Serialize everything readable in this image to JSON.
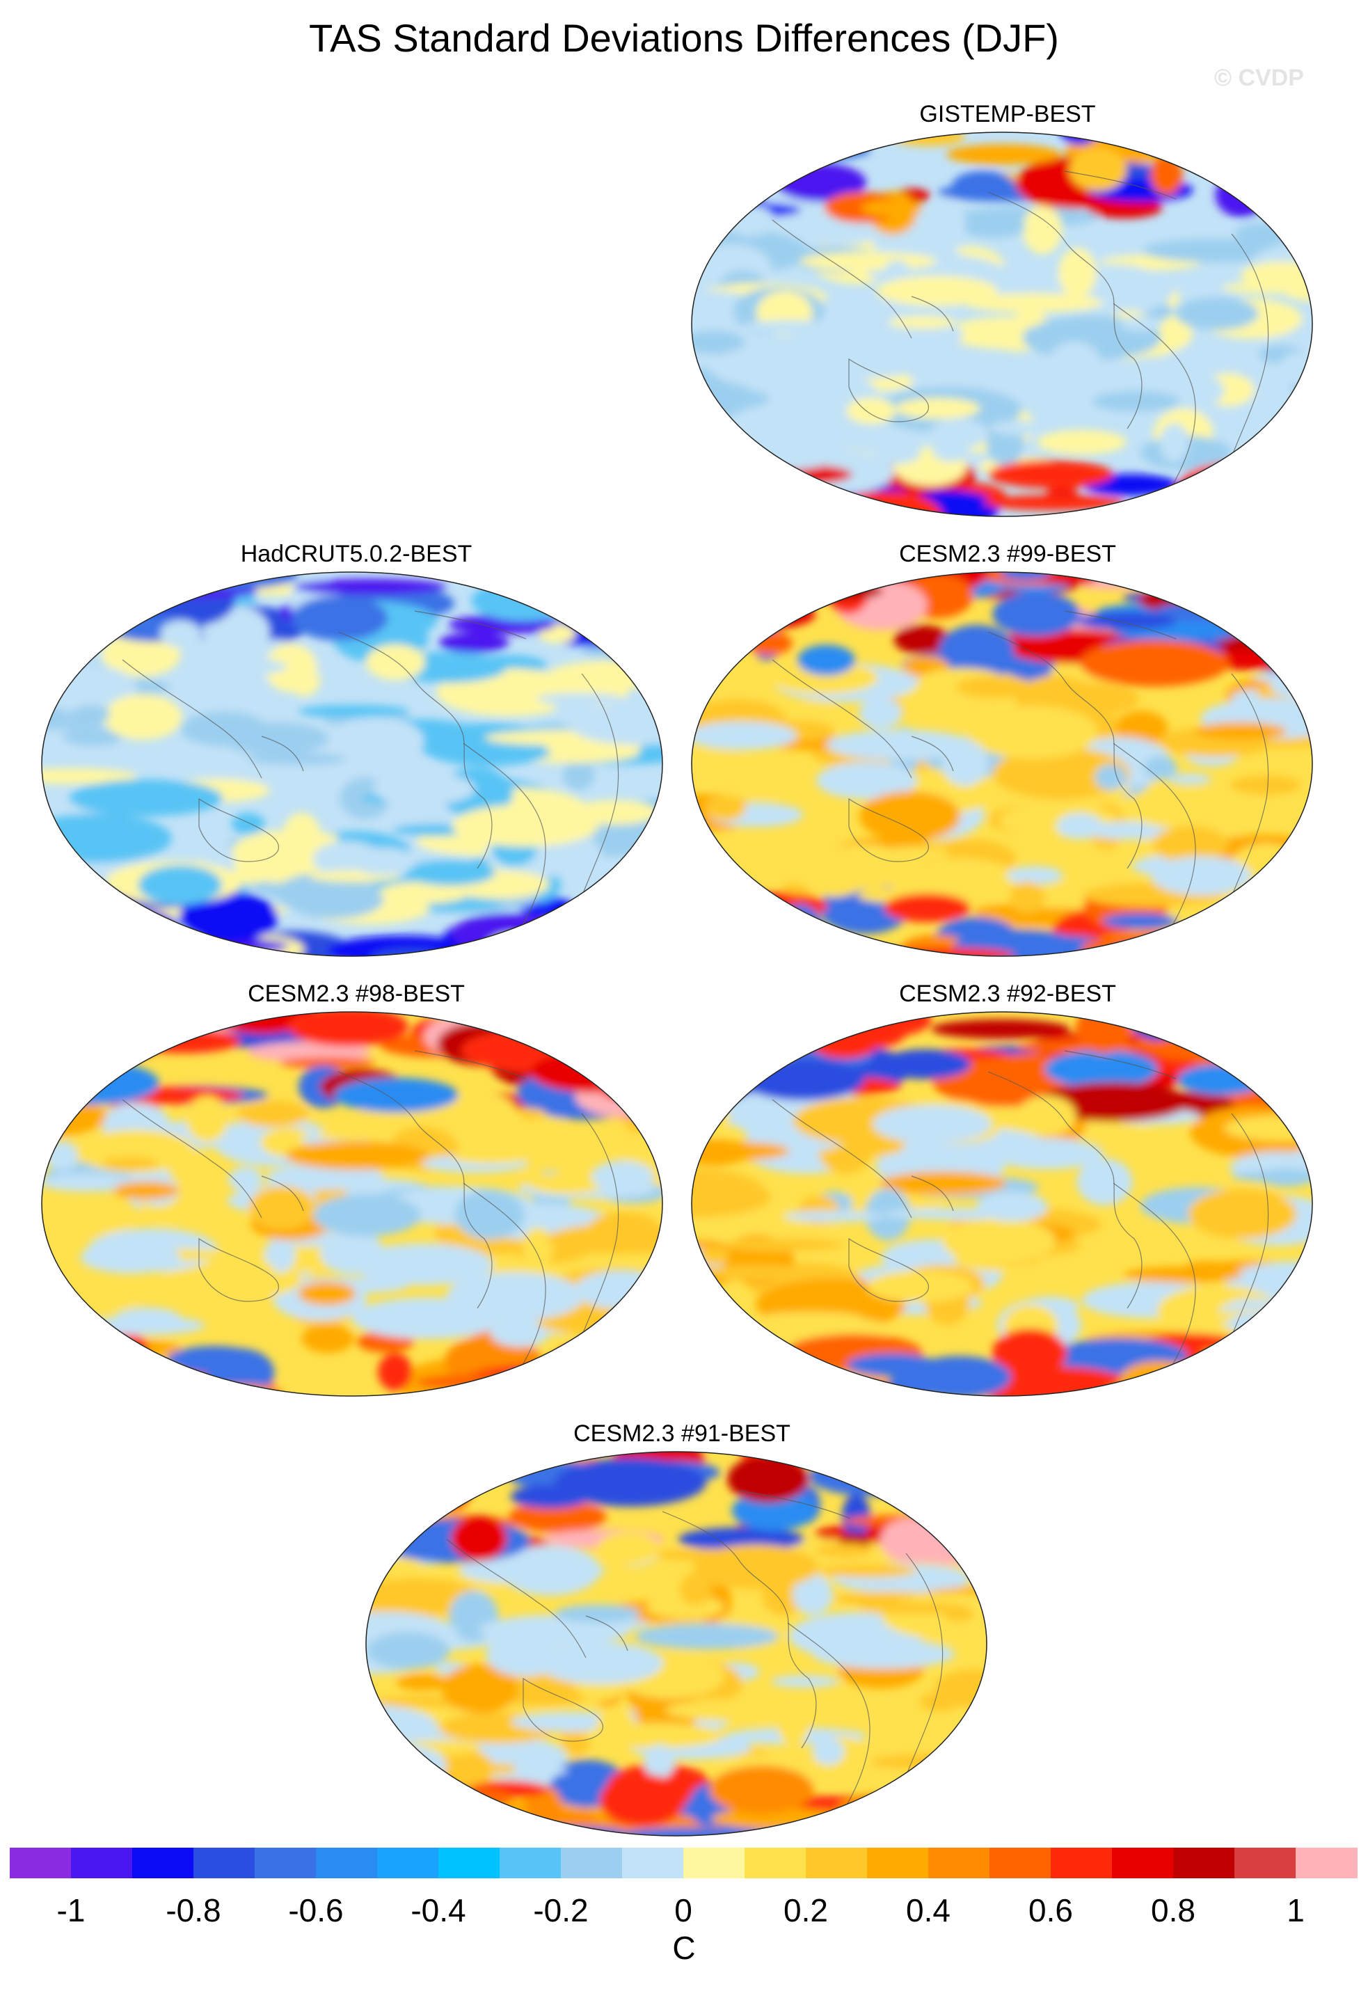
{
  "title": "TAS Standard Deviations Differences (DJF)",
  "watermark": "© CVDP",
  "panels": [
    {
      "label": "GISTEMP-BEST",
      "style": "mixed"
    },
    {
      "label": "HadCRUT5.0.2-BEST",
      "style": "cool"
    },
    {
      "label": "CESM2.3 #99-BEST",
      "style": "warm"
    },
    {
      "label": "CESM2.3 #98-BEST",
      "style": "warm"
    },
    {
      "label": "CESM2.3 #92-BEST",
      "style": "warm"
    },
    {
      "label": "CESM2.3 #91-BEST",
      "style": "warm"
    }
  ],
  "colorbar": {
    "colors": [
      "#8a2be2",
      "#4b17f0",
      "#0b0bf5",
      "#2a4ee0",
      "#3a72e6",
      "#2a8cf2",
      "#1aa2ff",
      "#00c2ff",
      "#58c4f5",
      "#9ccfef",
      "#c2e2f7",
      "#fff7a0",
      "#ffe14d",
      "#ffc82a",
      "#ffaa00",
      "#ff8c00",
      "#ff6400",
      "#ff2a0a",
      "#e80000",
      "#c00000",
      "#d84040",
      "#ffb3b8"
    ],
    "tick_labels": [
      "-1",
      "-0.8",
      "-0.6",
      "-0.4",
      "-0.2",
      "0",
      "0.2",
      "0.4",
      "0.6",
      "0.8",
      "1"
    ],
    "units": "C"
  }
}
